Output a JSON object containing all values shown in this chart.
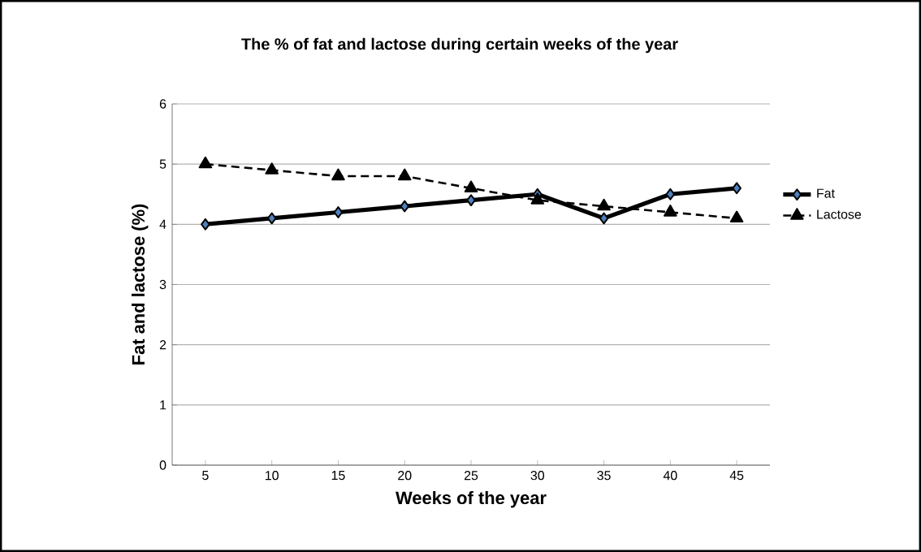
{
  "chart_data": {
    "type": "line",
    "title": "The % of fat and lactose during certain weeks of the year",
    "xlabel": "Weeks of the year",
    "ylabel": "Fat and lactose (%)",
    "categories": [
      "5",
      "10",
      "15",
      "20",
      "25",
      "30",
      "35",
      "40",
      "45"
    ],
    "series": [
      {
        "name": "Fat",
        "color": "#000000",
        "marker": "diamond",
        "line_style": "solid",
        "values": [
          4.0,
          4.1,
          4.2,
          4.3,
          4.4,
          4.5,
          4.1,
          4.5,
          4.6
        ]
      },
      {
        "name": "Lactose",
        "color": "#000000",
        "marker": "triangle",
        "line_style": "dashed",
        "values": [
          5.0,
          4.9,
          4.8,
          4.8,
          4.6,
          4.4,
          4.3,
          4.2,
          4.1
        ]
      }
    ],
    "ylim": [
      0,
      6
    ],
    "yticks": [
      0,
      1,
      2,
      3,
      4,
      5,
      6
    ],
    "grid": "y",
    "legend": "right"
  }
}
